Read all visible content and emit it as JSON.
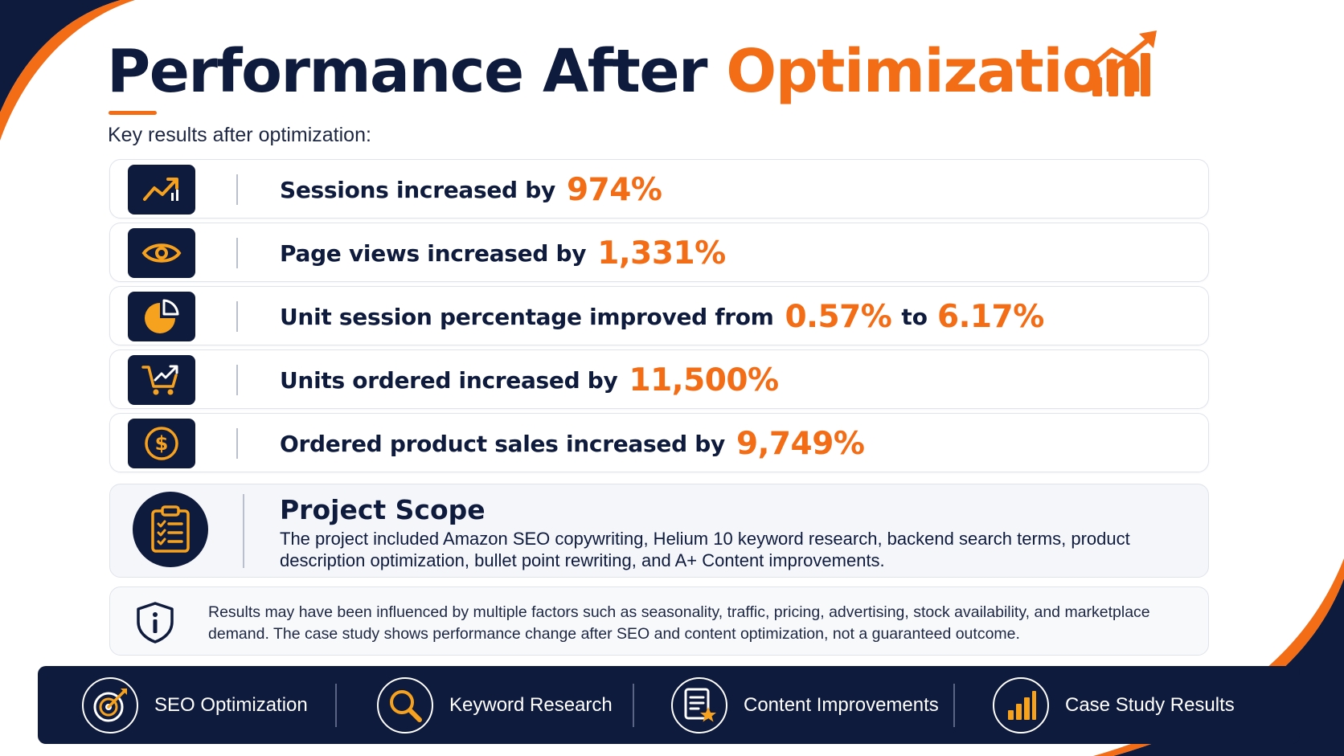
{
  "title": {
    "main": "Performance After ",
    "accent": "Optimization"
  },
  "subtitle": "Key results after optimization:",
  "metrics": [
    {
      "icon": "trend-up-icon",
      "label": "Sessions increased by",
      "value": "974%"
    },
    {
      "icon": "eye-icon",
      "label": "Page views increased by",
      "value": "1,331%"
    },
    {
      "icon": "pie-chart-icon",
      "label": "Unit session percentage improved from",
      "value": "0.57%",
      "connector": "to",
      "value2": "6.17%"
    },
    {
      "icon": "cart-growth-icon",
      "label": "Units ordered increased by",
      "value": "11,500%"
    },
    {
      "icon": "dollar-coin-icon",
      "label": "Ordered product sales increased by",
      "value": "9,749%"
    }
  ],
  "scope": {
    "icon": "clipboard-checklist-icon",
    "heading": "Project Scope",
    "text": "The project included Amazon SEO copywriting, Helium 10 keyword research, backend search terms, product description optimization, bullet point rewriting, and A+ Content improvements."
  },
  "disclaimer": {
    "icon": "shield-info-icon",
    "text": "Results may have been influenced by multiple factors such as seasonality, traffic, pricing, advertising, stock availability, and marketplace demand. The case study shows performance change after SEO and content optimization, not a guaranteed outcome."
  },
  "footer": [
    {
      "icon": "target-icon",
      "label": "SEO Optimization"
    },
    {
      "icon": "magnifier-icon",
      "label": "Keyword Research"
    },
    {
      "icon": "document-star-icon",
      "label": "Content Improvements"
    },
    {
      "icon": "bar-chart-icon",
      "label": "Case Study Results"
    }
  ],
  "colors": {
    "navy": "#0f1b3d",
    "accent": "#f36c16",
    "background": "#ffffff"
  }
}
